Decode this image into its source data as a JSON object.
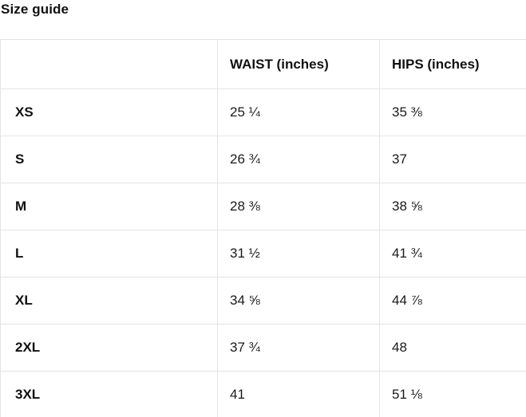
{
  "page": {
    "title": "Size guide"
  },
  "table": {
    "columns": {
      "size": "",
      "waist": "WAIST (inches)",
      "hips": "HIPS (inches)"
    },
    "rows": [
      {
        "size": "XS",
        "waist": "25 ¼",
        "hips": "35 ⅜"
      },
      {
        "size": "S",
        "waist": "26 ¾",
        "hips": "37"
      },
      {
        "size": "M",
        "waist": "28 ⅜",
        "hips": "38 ⅝"
      },
      {
        "size": "L",
        "waist": "31 ½",
        "hips": "41 ¾"
      },
      {
        "size": "XL",
        "waist": "34 ⅝",
        "hips": "44 ⅞"
      },
      {
        "size": "2XL",
        "waist": "37 ¾",
        "hips": "48"
      },
      {
        "size": "3XL",
        "waist": "41",
        "hips": "51 ⅛"
      }
    ]
  }
}
